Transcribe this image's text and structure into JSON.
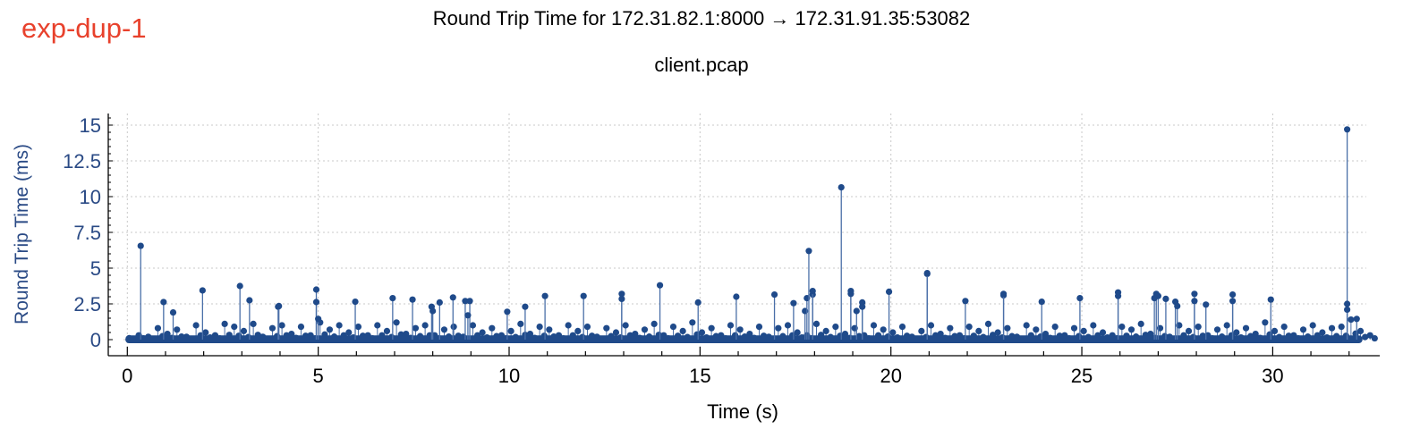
{
  "tag": "exp-dup-1",
  "chart_data": {
    "type": "scatter",
    "title": "Round Trip Time for 172.31.82.1:8000 → 172.31.91.35:53082",
    "subtitle": "client.pcap",
    "xlabel": "Time (s)",
    "ylabel": "Round Trip Time (ms)",
    "xlim": [
      -0.5,
      32.6
    ],
    "ylim": [
      -0.8,
      16
    ],
    "xticks": [
      0,
      5,
      10,
      15,
      20,
      25,
      30
    ],
    "yticks": [
      0,
      2.5,
      5,
      7.5,
      10,
      12.5,
      15
    ],
    "ytick_labels": [
      "0",
      "2.5",
      "5",
      "7.5",
      "10",
      "12.5",
      "15"
    ],
    "grid": true,
    "marker_style": "stem",
    "colors": {
      "series": "#1f4a8a",
      "stem": "#4a6fa8",
      "tag": "#e8412c",
      "axis_label": "#2a4a85"
    },
    "spikes": [
      [
        0.35,
        6.56
      ],
      [
        0.95,
        2.63
      ],
      [
        1.2,
        1.9
      ],
      [
        1.97,
        3.44
      ],
      [
        2.95,
        3.75
      ],
      [
        3.2,
        2.75
      ],
      [
        3.95,
        2.3
      ],
      [
        3.97,
        2.35
      ],
      [
        4.95,
        3.5
      ],
      [
        4.95,
        2.63
      ],
      [
        5.0,
        1.45
      ],
      [
        5.97,
        2.65
      ],
      [
        6.95,
        2.9
      ],
      [
        7.47,
        2.8
      ],
      [
        7.97,
        2.3
      ],
      [
        8.0,
        2.0
      ],
      [
        8.18,
        2.6
      ],
      [
        8.53,
        2.95
      ],
      [
        8.85,
        2.7
      ],
      [
        8.97,
        2.7
      ],
      [
        8.92,
        1.7
      ],
      [
        9.95,
        1.95
      ],
      [
        10.42,
        2.3
      ],
      [
        10.94,
        3.05
      ],
      [
        11.95,
        3.05
      ],
      [
        12.95,
        3.2
      ],
      [
        12.95,
        2.85
      ],
      [
        13.95,
        3.8
      ],
      [
        14.95,
        2.6
      ],
      [
        15.95,
        3.0
      ],
      [
        16.95,
        3.15
      ],
      [
        17.45,
        2.55
      ],
      [
        17.75,
        2.0
      ],
      [
        17.8,
        2.9
      ],
      [
        17.85,
        6.2
      ],
      [
        17.95,
        3.15
      ],
      [
        17.95,
        3.4
      ],
      [
        18.7,
        10.65
      ],
      [
        18.95,
        3.4
      ],
      [
        18.95,
        3.2
      ],
      [
        19.1,
        2.0
      ],
      [
        19.25,
        2.6
      ],
      [
        19.25,
        2.3
      ],
      [
        19.95,
        3.35
      ],
      [
        20.95,
        4.6
      ],
      [
        20.95,
        4.65
      ],
      [
        21.95,
        2.7
      ],
      [
        22.95,
        3.1
      ],
      [
        22.95,
        3.2
      ],
      [
        23.95,
        2.65
      ],
      [
        24.95,
        2.9
      ],
      [
        25.95,
        3.3
      ],
      [
        25.95,
        3.05
      ],
      [
        26.95,
        3.2
      ],
      [
        26.9,
        2.9
      ],
      [
        27.0,
        3.05
      ],
      [
        27.2,
        2.85
      ],
      [
        27.45,
        2.65
      ],
      [
        27.5,
        2.35
      ],
      [
        27.95,
        3.2
      ],
      [
        27.95,
        2.7
      ],
      [
        28.25,
        2.45
      ],
      [
        28.95,
        3.15
      ],
      [
        28.95,
        2.7
      ],
      [
        29.95,
        2.8
      ],
      [
        31.95,
        14.7
      ],
      [
        31.95,
        2.5
      ],
      [
        31.95,
        2.1
      ],
      [
        32.2,
        1.45
      ]
    ],
    "baseline_step": 0.25,
    "baseline": [
      0.1,
      0.3,
      0.2,
      0.8,
      0.4,
      0.7,
      0.2,
      1.0,
      0.5,
      0.3,
      1.1,
      0.9,
      0.6,
      1.1,
      0.2,
      0.8,
      1.0,
      0.4,
      0.9,
      0.3,
      1.2,
      0.7,
      1.0,
      0.5,
      0.9,
      0.3,
      1.0,
      0.6,
      1.2,
      0.4,
      0.8,
      1.0,
      0.3,
      0.7,
      0.9,
      0.2,
      1.0,
      0.5,
      0.8,
      0.3,
      0.6,
      1.1,
      0.4,
      0.9,
      0.7,
      0.3,
      1.0,
      0.6,
      0.9,
      0.2,
      0.8,
      0.5,
      1.0,
      0.4,
      0.7,
      1.1,
      0.3,
      0.9,
      0.6,
      1.2,
      0.5,
      0.8,
      0.3,
      1.0,
      0.7,
      0.4,
      0.9,
      0.2,
      0.8,
      1.0,
      0.5,
      0.3,
      1.1,
      0.6,
      0.9,
      0.4,
      0.8,
      0.3,
      1.0,
      0.7,
      0.5,
      0.9,
      0.2,
      0.6,
      1.0,
      0.4,
      0.8,
      0.3,
      0.9,
      0.6,
      1.1,
      0.5,
      0.8,
      0.2,
      1.0,
      0.7,
      0.4,
      0.9,
      0.3,
      0.8,
      0.6,
      1.0,
      0.5,
      0.3,
      0.9,
      0.7,
      1.1,
      0.4,
      0.8,
      0.2,
      1.0,
      0.6,
      0.9,
      0.3,
      0.7,
      1.0,
      0.5,
      0.8,
      0.4,
      1.2,
      0.6,
      0.9,
      0.3,
      0.7,
      1.0,
      0.5,
      0.8,
      0.9,
      1.4,
      0.6,
      0.3
    ]
  }
}
